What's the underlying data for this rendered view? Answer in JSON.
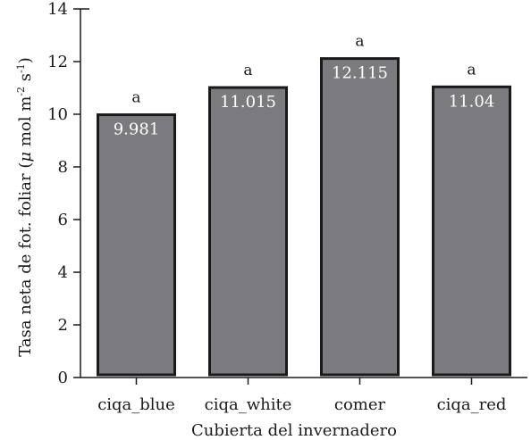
{
  "chart_data": {
    "type": "bar",
    "categories": [
      "ciqa_blue",
      "ciqa_white",
      "comer",
      "ciqa_red"
    ],
    "values": [
      9.981,
      11.015,
      12.115,
      11.04
    ],
    "value_labels": [
      "9.981",
      "11.015",
      "12.115",
      "11.04"
    ],
    "significance_letters": [
      "a",
      "a",
      "a",
      "a"
    ],
    "xlabel": "Cubierta del invernadero",
    "ylabel": {
      "prefix": "Tasa neta de fot. foliar (",
      "mu": "μ",
      "unit_1": " mol m",
      "sup_1": "-2",
      "unit_2": " s",
      "sup_2": "-1",
      "suffix": ")"
    },
    "ylim": [
      0,
      14
    ],
    "yticks": [
      0,
      2,
      4,
      6,
      8,
      10,
      12,
      14
    ],
    "grid": false,
    "bar_color": "#7a7a7f",
    "bar_edge_color": "#1a1a1a",
    "value_label_color": "#ffffff"
  }
}
